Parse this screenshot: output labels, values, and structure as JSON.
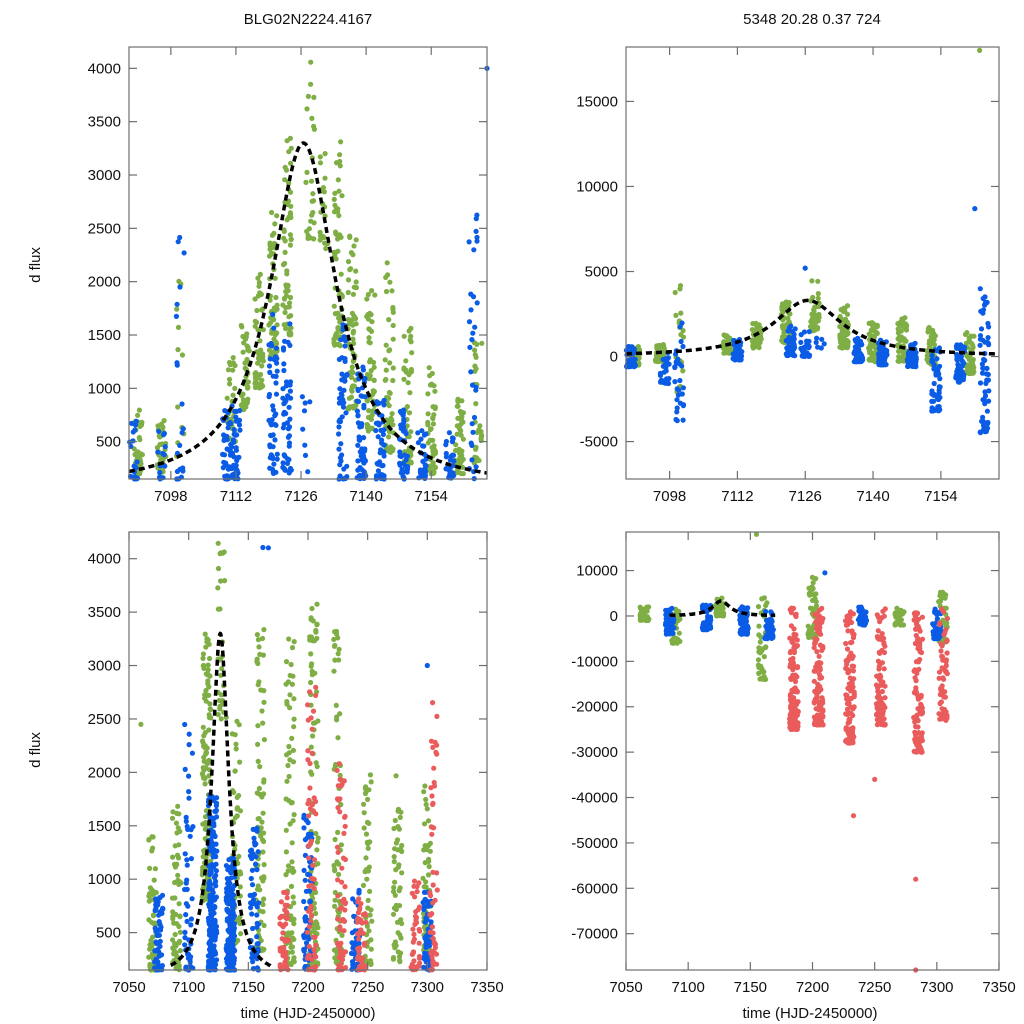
{
  "figure": {
    "colors": {
      "green": "#7fae45",
      "blue": "#0a5ce6",
      "red": "#ea5c5c",
      "model": "#000000"
    }
  },
  "chart_data": [
    {
      "id": "top-left",
      "type": "scatter",
      "title": "BLG02N2224.4167",
      "xlabel": "",
      "ylabel": "d flux",
      "xlim": [
        7089,
        7166
      ],
      "ylim": [
        150,
        4200
      ],
      "xticks": [
        7098,
        7112,
        7126,
        7140,
        7154
      ],
      "yticks": [
        500,
        1000,
        1500,
        2000,
        2500,
        3000,
        3500,
        4000
      ],
      "grid": false,
      "series": [
        {
          "name": "green-band",
          "color": "#7fae45",
          "clusters": [
            {
              "x": 7091,
              "y0": 200,
              "y1": 800,
              "n": 40
            },
            {
              "x": 7096,
              "y0": 200,
              "y1": 700,
              "n": 40
            },
            {
              "x": 7100,
              "y0": 300,
              "y1": 2050,
              "n": 12
            },
            {
              "x": 7111,
              "y0": 500,
              "y1": 1300,
              "n": 30
            },
            {
              "x": 7114,
              "y0": 800,
              "y1": 1600,
              "n": 40
            },
            {
              "x": 7117,
              "y0": 1000,
              "y1": 2100,
              "n": 50
            },
            {
              "x": 7120,
              "y0": 1300,
              "y1": 2700,
              "n": 60
            },
            {
              "x": 7123,
              "y0": 1500,
              "y1": 3350,
              "n": 60
            },
            {
              "x": 7128,
              "y0": 2400,
              "y1": 4150,
              "n": 25
            },
            {
              "x": 7131,
              "y0": 2300,
              "y1": 3300,
              "n": 20
            },
            {
              "x": 7134,
              "y0": 1400,
              "y1": 3450,
              "n": 60
            },
            {
              "x": 7137,
              "y0": 800,
              "y1": 2500,
              "n": 60
            },
            {
              "x": 7141,
              "y0": 600,
              "y1": 2000,
              "n": 50
            },
            {
              "x": 7145,
              "y0": 400,
              "y1": 2300,
              "n": 50
            },
            {
              "x": 7149,
              "y0": 300,
              "y1": 1600,
              "n": 50
            },
            {
              "x": 7154,
              "y0": 200,
              "y1": 1200,
              "n": 50
            },
            {
              "x": 7160,
              "y0": 200,
              "y1": 1000,
              "n": 50
            },
            {
              "x": 7164,
              "y0": 300,
              "y1": 1700,
              "n": 30
            }
          ]
        },
        {
          "name": "blue-band",
          "color": "#0a5ce6",
          "clusters": [
            {
              "x": 7090,
              "y0": 150,
              "y1": 700,
              "n": 20
            },
            {
              "x": 7096,
              "y0": 150,
              "y1": 600,
              "n": 15
            },
            {
              "x": 7100,
              "y0": 150,
              "y1": 2550,
              "n": 20
            },
            {
              "x": 7110,
              "y0": 150,
              "y1": 850,
              "n": 40
            },
            {
              "x": 7112,
              "y0": 150,
              "y1": 850,
              "n": 40
            },
            {
              "x": 7120,
              "y0": 200,
              "y1": 1700,
              "n": 50
            },
            {
              "x": 7123,
              "y0": 200,
              "y1": 1700,
              "n": 50
            },
            {
              "x": 7127,
              "y0": 200,
              "y1": 1100,
              "n": 8
            },
            {
              "x": 7135,
              "y0": 150,
              "y1": 1600,
              "n": 50
            },
            {
              "x": 7139,
              "y0": 150,
              "y1": 1200,
              "n": 60
            },
            {
              "x": 7143,
              "y0": 150,
              "y1": 900,
              "n": 50
            },
            {
              "x": 7148,
              "y0": 150,
              "y1": 800,
              "n": 40
            },
            {
              "x": 7152,
              "y0": 150,
              "y1": 700,
              "n": 30
            },
            {
              "x": 7158,
              "y0": 150,
              "y1": 600,
              "n": 30
            },
            {
              "x": 7163,
              "y0": 150,
              "y1": 2750,
              "n": 30
            },
            {
              "x": 7166,
              "y0": 4000,
              "y1": 4000,
              "n": 1
            }
          ]
        }
      ],
      "model": {
        "t0": 7126.5,
        "peak": 3300,
        "base": 60,
        "tE": 9
      }
    },
    {
      "id": "top-right",
      "type": "scatter",
      "title": "5348  20.28  0.37  724",
      "xlabel": "",
      "ylabel": "",
      "xlim": [
        7089,
        7166
      ],
      "ylim": [
        -7200,
        18200
      ],
      "xticks": [
        7098,
        7112,
        7126,
        7140,
        7154
      ],
      "yticks": [
        -5000,
        0,
        5000,
        10000,
        15000
      ],
      "grid": false,
      "series": [
        {
          "name": "green-band",
          "color": "#7fae45",
          "clusters": [
            {
              "x": 7091,
              "y0": -500,
              "y1": 600,
              "n": 40
            },
            {
              "x": 7096,
              "y0": -300,
              "y1": 700,
              "n": 40
            },
            {
              "x": 7100,
              "y0": -2500,
              "y1": 6800,
              "n": 20
            },
            {
              "x": 7110,
              "y0": 200,
              "y1": 1300,
              "n": 40
            },
            {
              "x": 7116,
              "y0": 500,
              "y1": 2000,
              "n": 60
            },
            {
              "x": 7122,
              "y0": 800,
              "y1": 3300,
              "n": 70
            },
            {
              "x": 7128,
              "y0": 1500,
              "y1": 4700,
              "n": 40
            },
            {
              "x": 7134,
              "y0": 500,
              "y1": 3000,
              "n": 60
            },
            {
              "x": 7140,
              "y0": -300,
              "y1": 2000,
              "n": 60
            },
            {
              "x": 7146,
              "y0": -300,
              "y1": 2300,
              "n": 60
            },
            {
              "x": 7152,
              "y0": -500,
              "y1": 1800,
              "n": 60
            },
            {
              "x": 7160,
              "y0": -1000,
              "y1": 1500,
              "n": 60
            },
            {
              "x": 7162,
              "y0": 18000,
              "y1": 18000,
              "n": 1
            }
          ]
        },
        {
          "name": "blue-band",
          "color": "#0a5ce6",
          "clusters": [
            {
              "x": 7090,
              "y0": -600,
              "y1": 600,
              "n": 40
            },
            {
              "x": 7097,
              "y0": -1600,
              "y1": 400,
              "n": 30
            },
            {
              "x": 7100,
              "y0": -3800,
              "y1": 2500,
              "n": 30
            },
            {
              "x": 7112,
              "y0": -200,
              "y1": 1000,
              "n": 40
            },
            {
              "x": 7123,
              "y0": 0,
              "y1": 1800,
              "n": 40
            },
            {
              "x": 7126,
              "y0": 0,
              "y1": 1500,
              "n": 30
            },
            {
              "x": 7129,
              "y0": 500,
              "y1": 1200,
              "n": 6
            },
            {
              "x": 7137,
              "y0": -300,
              "y1": 1200,
              "n": 50
            },
            {
              "x": 7142,
              "y0": -500,
              "y1": 1000,
              "n": 60
            },
            {
              "x": 7148,
              "y0": -600,
              "y1": 800,
              "n": 60
            },
            {
              "x": 7153,
              "y0": -3200,
              "y1": 900,
              "n": 50
            },
            {
              "x": 7158,
              "y0": -1500,
              "y1": 700,
              "n": 50
            },
            {
              "x": 7163,
              "y0": -4500,
              "y1": 4000,
              "n": 60
            },
            {
              "x": 7161,
              "y0": 8700,
              "y1": 8700,
              "n": 1
            },
            {
              "x": 7126,
              "y0": 5200,
              "y1": 5200,
              "n": 1
            }
          ]
        }
      ],
      "model": {
        "t0": 7126.5,
        "peak": 3300,
        "base": 0,
        "tE": 9
      }
    },
    {
      "id": "bottom-left",
      "type": "scatter",
      "title": "",
      "xlabel": "time (HJD-2450000)",
      "ylabel": "d flux",
      "xlim": [
        7050,
        7350
      ],
      "ylim": [
        150,
        4250
      ],
      "xticks": [
        7050,
        7100,
        7150,
        7200,
        7250,
        7300,
        7350
      ],
      "yticks": [
        500,
        1000,
        1500,
        2000,
        2500,
        3000,
        3500,
        4000
      ],
      "grid": false,
      "series": [
        {
          "name": "green-band",
          "color": "#7fae45",
          "clusters": [
            {
              "x": 7070,
              "y0": 150,
              "y1": 1400,
              "n": 60
            },
            {
              "x": 7090,
              "y0": 150,
              "y1": 1700,
              "n": 60
            },
            {
              "x": 7115,
              "y0": 800,
              "y1": 3300,
              "n": 150
            },
            {
              "x": 7128,
              "y0": 2500,
              "y1": 4150,
              "n": 30
            },
            {
              "x": 7140,
              "y0": 400,
              "y1": 2500,
              "n": 60
            },
            {
              "x": 7160,
              "y0": 300,
              "y1": 3400,
              "n": 80
            },
            {
              "x": 7185,
              "y0": 200,
              "y1": 3300,
              "n": 80
            },
            {
              "x": 7205,
              "y0": 200,
              "y1": 3600,
              "n": 90
            },
            {
              "x": 7225,
              "y0": 200,
              "y1": 3400,
              "n": 70
            },
            {
              "x": 7250,
              "y0": 200,
              "y1": 2000,
              "n": 50
            },
            {
              "x": 7275,
              "y0": 200,
              "y1": 2000,
              "n": 50
            },
            {
              "x": 7300,
              "y0": 300,
              "y1": 1900,
              "n": 60
            },
            {
              "x": 7060,
              "y0": 2450,
              "y1": 2450,
              "n": 1
            }
          ]
        },
        {
          "name": "blue-band",
          "color": "#0a5ce6",
          "clusters": [
            {
              "x": 7075,
              "y0": 150,
              "y1": 900,
              "n": 50
            },
            {
              "x": 7100,
              "y0": 150,
              "y1": 2550,
              "n": 50
            },
            {
              "x": 7120,
              "y0": 150,
              "y1": 1800,
              "n": 200
            },
            {
              "x": 7135,
              "y0": 150,
              "y1": 1200,
              "n": 200
            },
            {
              "x": 7155,
              "y0": 150,
              "y1": 1500,
              "n": 60
            },
            {
              "x": 7200,
              "y0": 150,
              "y1": 1600,
              "n": 70
            },
            {
              "x": 7240,
              "y0": 150,
              "y1": 900,
              "n": 50
            },
            {
              "x": 7300,
              "y0": 150,
              "y1": 900,
              "n": 70
            },
            {
              "x": 7165,
              "y0": 4100,
              "y1": 4150,
              "n": 2
            },
            {
              "x": 7300,
              "y0": 3000,
              "y1": 3000,
              "n": 1
            }
          ]
        },
        {
          "name": "red-band",
          "color": "#ea5c5c",
          "clusters": [
            {
              "x": 7180,
              "y0": 150,
              "y1": 900,
              "n": 50
            },
            {
              "x": 7203,
              "y0": 150,
              "y1": 2800,
              "n": 60
            },
            {
              "x": 7228,
              "y0": 150,
              "y1": 2100,
              "n": 60
            },
            {
              "x": 7245,
              "y0": 150,
              "y1": 900,
              "n": 40
            },
            {
              "x": 7290,
              "y0": 150,
              "y1": 1000,
              "n": 40
            },
            {
              "x": 7305,
              "y0": 150,
              "y1": 2750,
              "n": 50
            }
          ]
        }
      ],
      "model": {
        "t0": 7126.5,
        "peak": 3300,
        "base": 60,
        "tE": 9
      }
    },
    {
      "id": "bottom-right",
      "type": "scatter",
      "title": "",
      "xlabel": "time (HJD-2450000)",
      "ylabel": "",
      "xlim": [
        7050,
        7350
      ],
      "ylim": [
        -78000,
        18500
      ],
      "xticks": [
        7050,
        7100,
        7150,
        7200,
        7250,
        7300,
        7350
      ],
      "yticks": [
        -70000,
        -60000,
        -50000,
        -40000,
        -30000,
        -20000,
        -10000,
        0,
        10000
      ],
      "grid": false,
      "series": [
        {
          "name": "green-band",
          "color": "#7fae45",
          "clusters": [
            {
              "x": 7065,
              "y0": -1000,
              "y1": 2000,
              "n": 40
            },
            {
              "x": 7090,
              "y0": -6000,
              "y1": 1500,
              "n": 30
            },
            {
              "x": 7125,
              "y0": 0,
              "y1": 4000,
              "n": 40
            },
            {
              "x": 7160,
              "y0": -14000,
              "y1": 5500,
              "n": 40
            },
            {
              "x": 7200,
              "y0": -5000,
              "y1": 9000,
              "n": 50
            },
            {
              "x": 7270,
              "y0": -2000,
              "y1": 2000,
              "n": 30
            },
            {
              "x": 7305,
              "y0": -6000,
              "y1": 5500,
              "n": 40
            },
            {
              "x": 7155,
              "y0": 18000,
              "y1": 18000,
              "n": 1
            }
          ]
        },
        {
          "name": "blue-band",
          "color": "#0a5ce6",
          "clusters": [
            {
              "x": 7085,
              "y0": -4000,
              "y1": 2000,
              "n": 60
            },
            {
              "x": 7115,
              "y0": -3000,
              "y1": 2500,
              "n": 60
            },
            {
              "x": 7145,
              "y0": -4000,
              "y1": 2000,
              "n": 80
            },
            {
              "x": 7165,
              "y0": -5000,
              "y1": 1000,
              "n": 50
            },
            {
              "x": 7240,
              "y0": -2000,
              "y1": 2000,
              "n": 40
            },
            {
              "x": 7300,
              "y0": -5000,
              "y1": 2000,
              "n": 40
            },
            {
              "x": 7210,
              "y0": 9500,
              "y1": 9500,
              "n": 1
            }
          ]
        },
        {
          "name": "red-band",
          "color": "#ea5c5c",
          "clusters": [
            {
              "x": 7185,
              "y0": -25000,
              "y1": 2000,
              "n": 120
            },
            {
              "x": 7205,
              "y0": -24000,
              "y1": 2000,
              "n": 110
            },
            {
              "x": 7230,
              "y0": -28000,
              "y1": 2000,
              "n": 110
            },
            {
              "x": 7255,
              "y0": -24000,
              "y1": 2000,
              "n": 90
            },
            {
              "x": 7285,
              "y0": -30000,
              "y1": 2000,
              "n": 100
            },
            {
              "x": 7305,
              "y0": -23000,
              "y1": 2000,
              "n": 60
            },
            {
              "x": 7233,
              "y0": -44000,
              "y1": -44000,
              "n": 1
            },
            {
              "x": 7250,
              "y0": -36000,
              "y1": -36000,
              "n": 1
            },
            {
              "x": 7283,
              "y0": -58000,
              "y1": -58000,
              "n": 1
            },
            {
              "x": 7283,
              "y0": -78000,
              "y1": -78000,
              "n": 1
            }
          ]
        }
      ],
      "model": {
        "t0": 7126.5,
        "peak": 3300,
        "base": 0,
        "tE": 9
      }
    }
  ]
}
